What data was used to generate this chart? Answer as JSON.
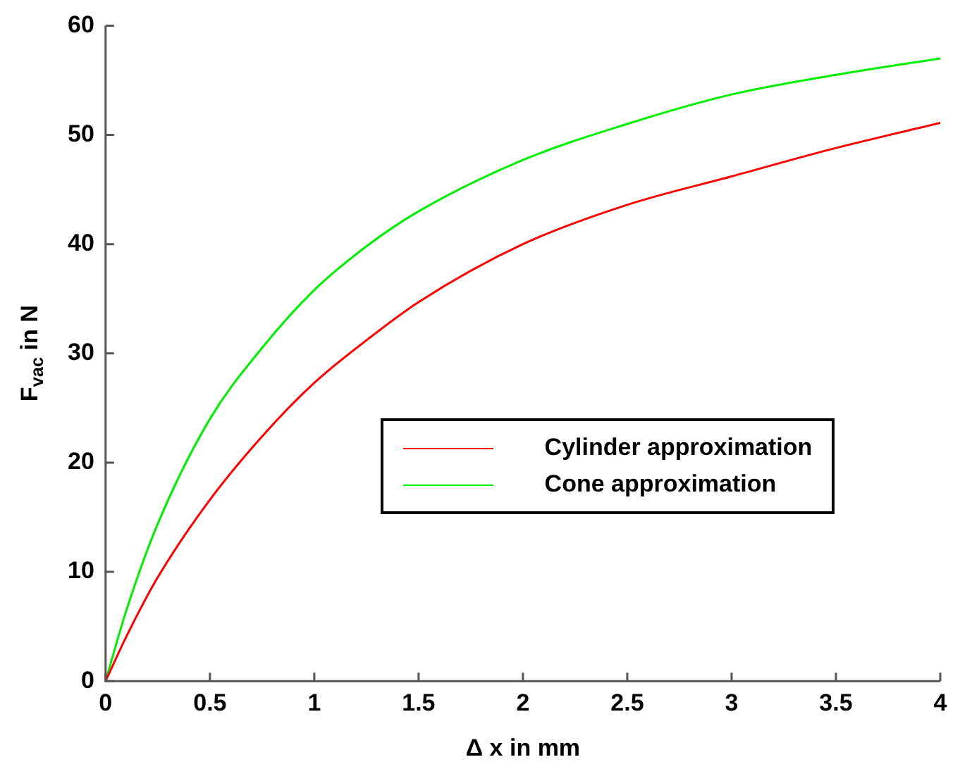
{
  "chart_data": {
    "type": "line",
    "xlabel": "Δ x in mm",
    "ylabel": "F$_{vac}$ in N",
    "x": [
      0,
      0.1,
      0.25,
      0.5,
      0.75,
      1,
      1.25,
      1.5,
      2,
      2.5,
      3,
      3.5,
      4
    ],
    "series": [
      {
        "name": "Cylinder approximation",
        "color": "#ff0000",
        "values": [
          0,
          4.1,
          9.5,
          16.6,
          22.4,
          27.3,
          31.2,
          34.7,
          40,
          43.6,
          46.2,
          48.8,
          51.1
        ]
      },
      {
        "name": "Cone approximation",
        "color": "#00ee00",
        "values": [
          0,
          6.5,
          14.4,
          24,
          30.5,
          35.8,
          39.8,
          43,
          47.7,
          51,
          53.7,
          55.5,
          57
        ]
      }
    ],
    "xlim": [
      0,
      4
    ],
    "xticks": [
      0,
      0.5,
      1,
      1.5,
      2,
      2.5,
      3,
      3.5,
      4
    ],
    "ylim": [
      0,
      60
    ],
    "yticks": [
      0,
      10,
      20,
      30,
      40,
      50,
      60
    ],
    "grid": false,
    "legend": "right",
    "marker": "none",
    "line_style": "solid"
  }
}
